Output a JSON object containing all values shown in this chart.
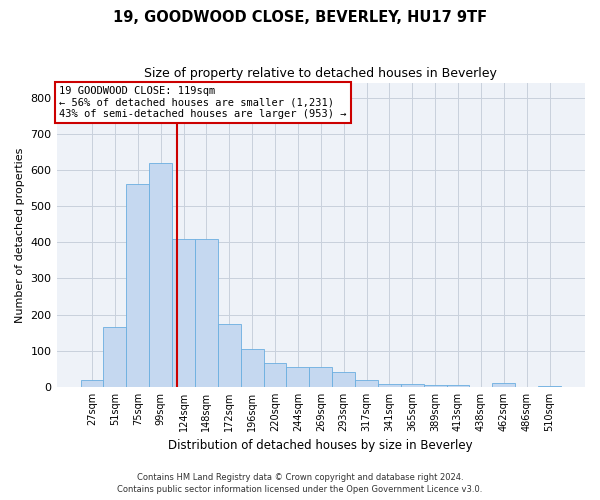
{
  "title": "19, GOODWOOD CLOSE, BEVERLEY, HU17 9TF",
  "subtitle": "Size of property relative to detached houses in Beverley",
  "xlabel": "Distribution of detached houses by size in Beverley",
  "ylabel": "Number of detached properties",
  "bar_color": "#c5d8f0",
  "bar_edge_color": "#6aaee0",
  "grid_color": "#c8d0dc",
  "bg_color": "#eef2f8",
  "categories": [
    "27sqm",
    "51sqm",
    "75sqm",
    "99sqm",
    "124sqm",
    "148sqm",
    "172sqm",
    "196sqm",
    "220sqm",
    "244sqm",
    "269sqm",
    "293sqm",
    "317sqm",
    "341sqm",
    "365sqm",
    "389sqm",
    "413sqm",
    "438sqm",
    "462sqm",
    "486sqm",
    "510sqm"
  ],
  "values": [
    18,
    165,
    560,
    620,
    410,
    410,
    175,
    105,
    65,
    55,
    55,
    40,
    20,
    8,
    8,
    5,
    5,
    0,
    10,
    0,
    3
  ],
  "vline_pos": 3.72,
  "vline_color": "#cc0000",
  "annotation_text": "19 GOODWOOD CLOSE: 119sqm\n← 56% of detached houses are smaller (1,231)\n43% of semi-detached houses are larger (953) →",
  "annotation_box_color": "#ffffff",
  "annotation_border_color": "#cc0000",
  "ylim": [
    0,
    840
  ],
  "yticks": [
    0,
    100,
    200,
    300,
    400,
    500,
    600,
    700,
    800
  ],
  "footer_line1": "Contains HM Land Registry data © Crown copyright and database right 2024.",
  "footer_line2": "Contains public sector information licensed under the Open Government Licence v3.0."
}
